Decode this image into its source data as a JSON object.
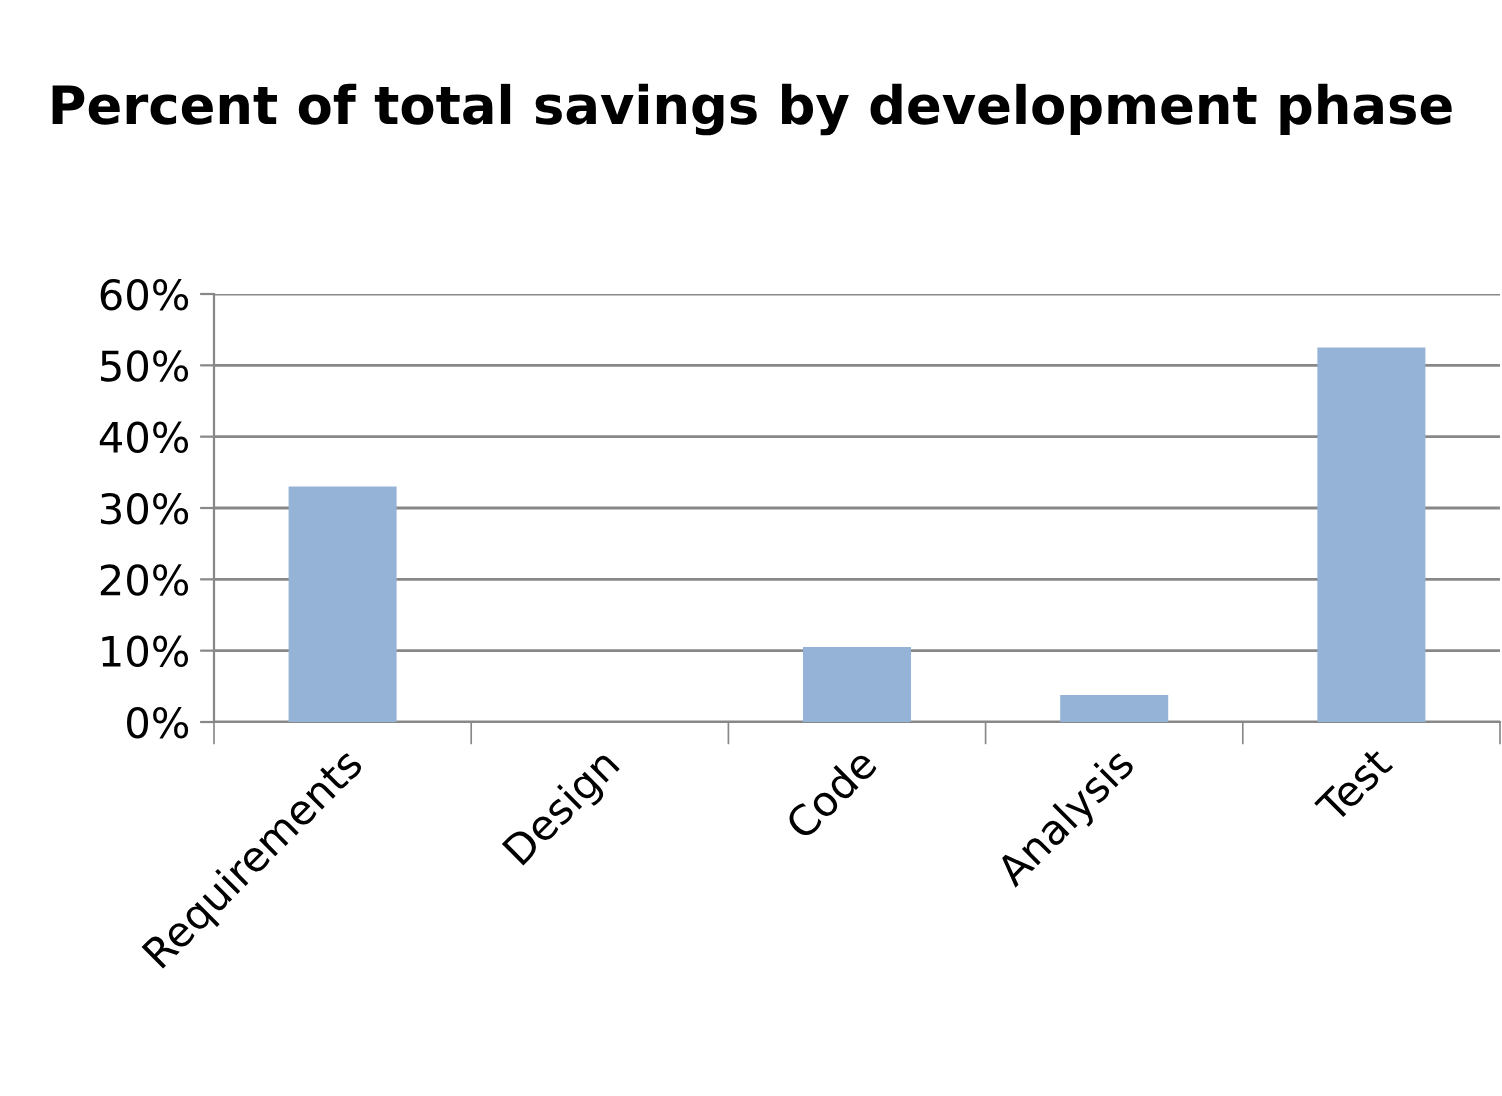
{
  "chart_data": {
    "type": "bar",
    "title": "Percent of total savings by development phase",
    "categories": [
      "Requirements",
      "Design",
      "Code",
      "Analysis",
      "Test"
    ],
    "values": [
      33,
      0,
      10.5,
      3.8,
      52.5
    ],
    "color": "#95b3d7",
    "ylim": [
      0,
      60
    ],
    "yticks": [
      {
        "value": 0,
        "label": "0%"
      },
      {
        "value": 10,
        "label": "10%"
      },
      {
        "value": 20,
        "label": "20%"
      },
      {
        "value": 30,
        "label": "30%"
      },
      {
        "value": 40,
        "label": "40%"
      },
      {
        "value": 50,
        "label": "50%"
      },
      {
        "value": 60,
        "label": "60%"
      }
    ],
    "grid": "y",
    "legend": false
  }
}
